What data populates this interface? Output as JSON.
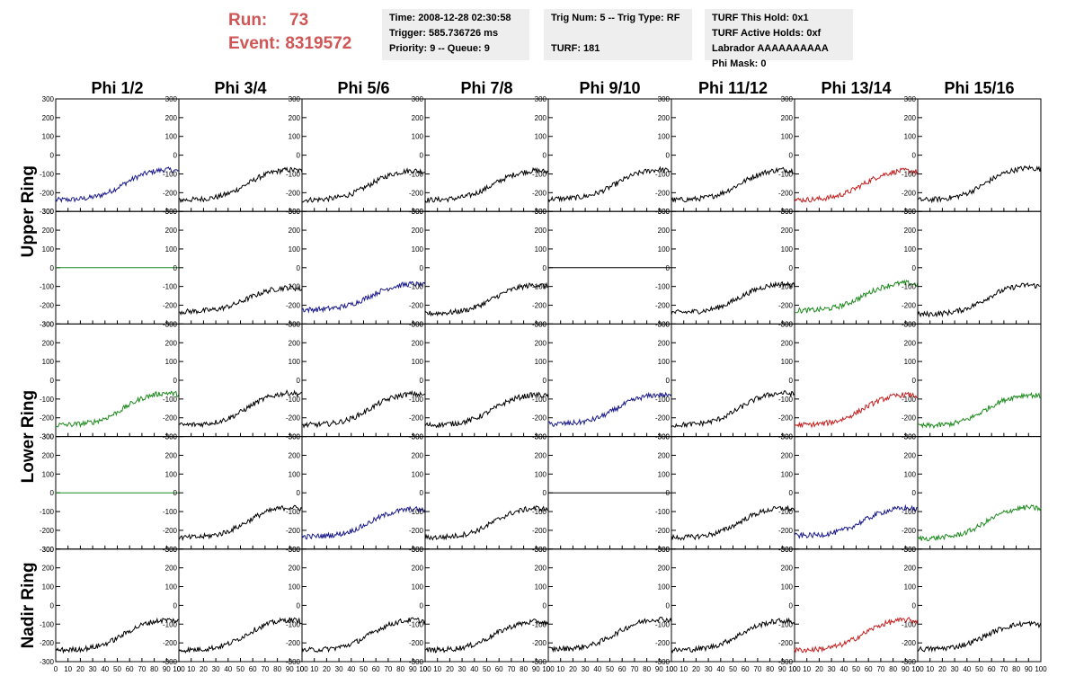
{
  "header": {
    "run_label": "Run:",
    "run_value": "73",
    "event_label": "Event:",
    "event_value": "8319572",
    "time": "Time: 2008-12-28 02:30:58",
    "trigger": "Trigger: 585.736726 ms",
    "priority": "Priority: 9 -- Queue: 9",
    "trig_num": "Trig Num: 5 -- Trig Type: RF",
    "turf": "TURF: 181",
    "turf_this_hold": "TURF This Hold: 0x1",
    "turf_active_holds": "TURF Active Holds: 0xf",
    "labrador": "Labrador AAAAAAAAAA",
    "phi_mask": "Phi Mask: 0"
  },
  "chart_data": {
    "type": "line",
    "title": "",
    "column_headers": [
      "Phi 1/2",
      "Phi 3/4",
      "Phi 5/6",
      "Phi 7/8",
      "Phi 9/10",
      "Phi 11/12",
      "Phi 13/14",
      "Phi 15/16"
    ],
    "ring_labels": [
      "Upper Ring",
      "Lower Ring",
      "Nadir Ring"
    ],
    "xlim": [
      0,
      100
    ],
    "ylim": [
      -300,
      300
    ],
    "x_ticks": [
      0,
      10,
      20,
      30,
      40,
      50,
      60,
      70,
      80,
      90,
      100
    ],
    "y_ticks": [
      -300,
      -200,
      -100,
      0,
      100,
      200,
      300
    ],
    "trace_shape_note": "rising",
    "colors": {
      "black": "#000000",
      "blue": "#1a1a8c",
      "green": "#1d8a1d",
      "red": "#c41e1e"
    },
    "rows": [
      {
        "ring": "Upper Ring",
        "traces": [
          {
            "color": "blue",
            "y_start": -240,
            "y_end": -70
          },
          {
            "color": "black",
            "y_start": -240,
            "y_end": -70
          },
          {
            "color": "black",
            "y_start": -240,
            "y_end": -75
          },
          {
            "color": "black",
            "y_start": -240,
            "y_end": -75
          },
          {
            "color": "black",
            "y_start": -235,
            "y_end": -70
          },
          {
            "color": "black",
            "y_start": -240,
            "y_end": -70
          },
          {
            "color": "red",
            "y_start": -240,
            "y_end": -75
          },
          {
            "color": "black",
            "y_start": -240,
            "y_end": -60
          }
        ]
      },
      {
        "ring": "Upper Ring",
        "traces": [
          {
            "color": "green",
            "flat": 0
          },
          {
            "color": "black",
            "y_start": -235,
            "y_end": -100
          },
          {
            "color": "blue",
            "y_start": -225,
            "y_end": -80
          },
          {
            "color": "black",
            "y_start": -245,
            "y_end": -85
          },
          {
            "color": "black",
            "flat": 0
          },
          {
            "color": "black",
            "y_start": -240,
            "y_end": -80
          },
          {
            "color": "green",
            "y_start": -230,
            "y_end": -75
          },
          {
            "color": "black",
            "y_start": -250,
            "y_end": -85
          }
        ]
      },
      {
        "ring": "Lower Ring",
        "traces": [
          {
            "color": "green",
            "y_start": -240,
            "y_end": -60
          },
          {
            "color": "black",
            "y_start": -240,
            "y_end": -60
          },
          {
            "color": "black",
            "y_start": -240,
            "y_end": -65
          },
          {
            "color": "black",
            "y_start": -240,
            "y_end": -70
          },
          {
            "color": "blue",
            "y_start": -235,
            "y_end": -70
          },
          {
            "color": "black",
            "y_start": -240,
            "y_end": -60
          },
          {
            "color": "red",
            "y_start": -240,
            "y_end": -70
          },
          {
            "color": "green",
            "y_start": -245,
            "y_end": -70
          }
        ]
      },
      {
        "ring": "Lower Ring",
        "traces": [
          {
            "color": "green",
            "flat": 0
          },
          {
            "color": "black",
            "y_start": -240,
            "y_end": -70
          },
          {
            "color": "blue",
            "y_start": -235,
            "y_end": -80
          },
          {
            "color": "black",
            "y_start": -240,
            "y_end": -75
          },
          {
            "color": "black",
            "flat": 0
          },
          {
            "color": "black",
            "y_start": -240,
            "y_end": -75
          },
          {
            "color": "blue",
            "y_start": -230,
            "y_end": -75
          },
          {
            "color": "green",
            "y_start": -245,
            "y_end": -70
          }
        ]
      },
      {
        "ring": "Nadir Ring",
        "traces": [
          {
            "color": "black",
            "y_start": -240,
            "y_end": -70
          },
          {
            "color": "black",
            "y_start": -240,
            "y_end": -70
          },
          {
            "color": "black",
            "y_start": -240,
            "y_end": -70
          },
          {
            "color": "black",
            "y_start": -240,
            "y_end": -80
          },
          {
            "color": "black",
            "y_start": -235,
            "y_end": -65
          },
          {
            "color": "black",
            "y_start": -240,
            "y_end": -75
          },
          {
            "color": "red",
            "y_start": -240,
            "y_end": -70
          },
          {
            "color": "black",
            "y_start": -235,
            "y_end": -90
          }
        ]
      }
    ]
  }
}
